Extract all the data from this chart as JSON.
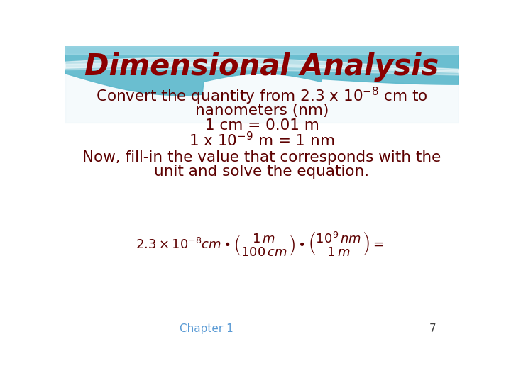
{
  "title": "Dimensional Analysis",
  "title_color": "#8B0000",
  "title_fontsize": 30,
  "body_color": "#5C0000",
  "body_fontsize": 15.5,
  "bg_color": "#FFFFFF",
  "footer_text": "Chapter 1",
  "footer_number": "7",
  "footer_color": "#5B9BD5",
  "footer_num_color": "#404040",
  "line1": "Convert the quantity from 2.3 x 10$^{-8}$ cm to",
  "line2": "nanometers (nm)",
  "line3": "1 cm = 0.01 m",
  "line4": "1 x 10$^{-9}$ m = 1 nm",
  "line5": "Now, fill-in the value that corresponds with the",
  "line6": "unit and solve the equation.",
  "eq": "$2.3\\times10^{-8}\\mathit{cm}\\bullet\\left(\\dfrac{1\\,\\mathit{m}}{100\\,\\mathit{cm}}\\right)\\bullet\\left(\\dfrac{10^{9}\\,\\mathit{nm}}{1\\,\\mathit{m}}\\right)=$"
}
